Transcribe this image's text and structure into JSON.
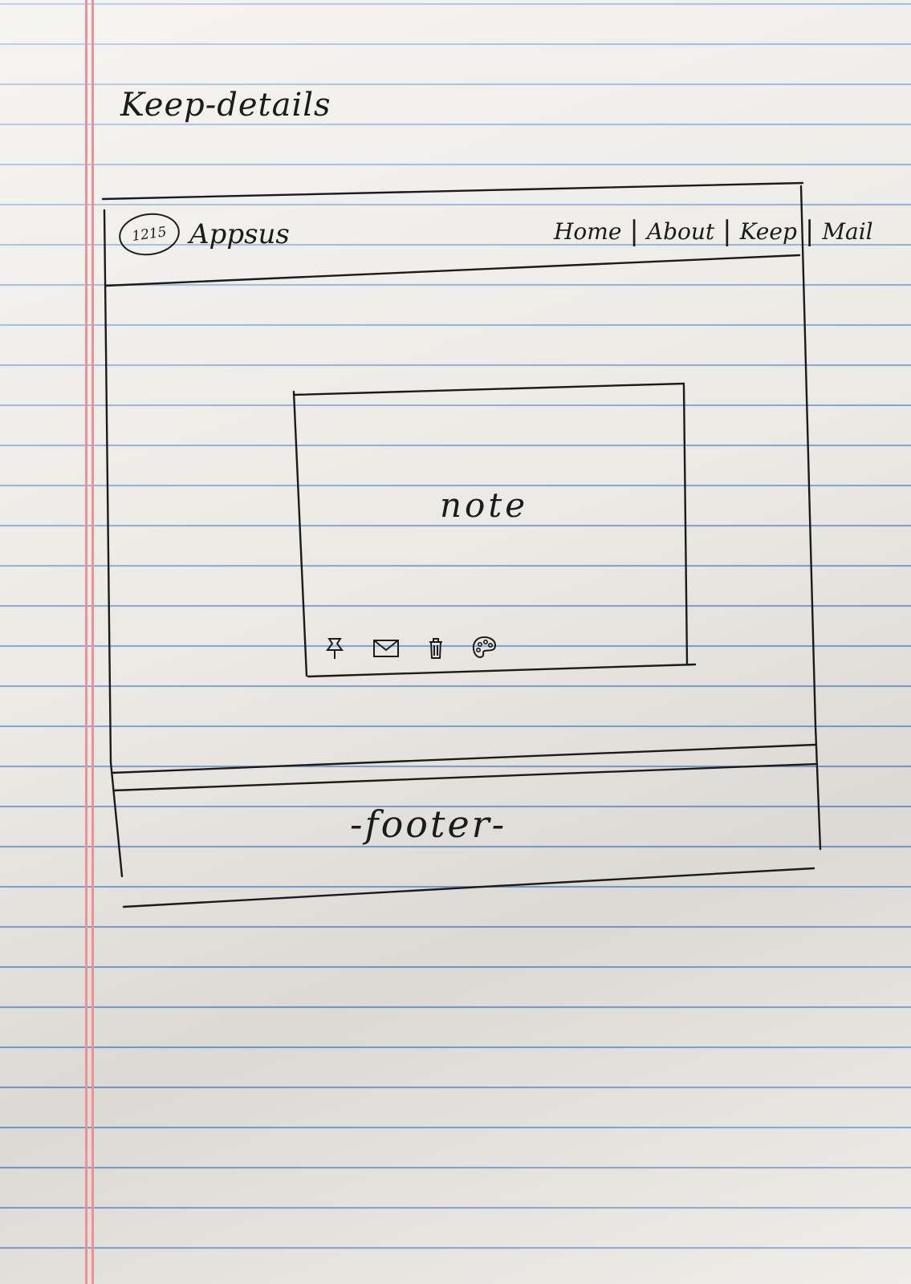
{
  "page_title": "Keep-details",
  "header": {
    "logo_text": "1215",
    "brand": "Appsus",
    "nav": [
      {
        "label": "Home"
      },
      {
        "label": "About"
      },
      {
        "label": "Keep"
      },
      {
        "label": "Mail"
      }
    ]
  },
  "note": {
    "text": "note",
    "tools": [
      {
        "icon": "pin-icon"
      },
      {
        "icon": "envelope-icon"
      },
      {
        "icon": "trash-icon"
      },
      {
        "icon": "palette-icon"
      }
    ]
  },
  "footer": {
    "text": "-footer-"
  },
  "colors": {
    "ink": "#1b1b1b",
    "paper": "#e9e7e1",
    "rule_line": "#6f98cf",
    "margin_line": "#ef8f96"
  }
}
